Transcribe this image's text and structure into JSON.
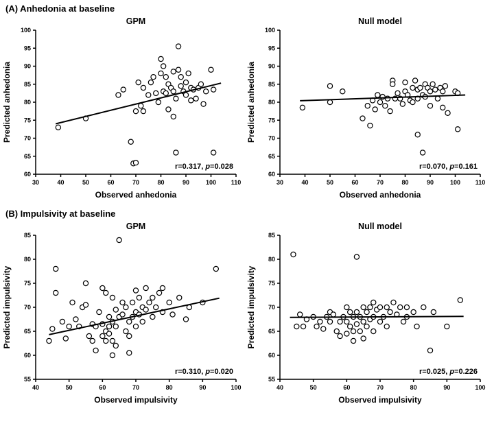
{
  "figure": {
    "sections": [
      {
        "label": "(A) Anhedonia at baseline"
      },
      {
        "label": "(B) Impulsivity at baseline"
      }
    ]
  },
  "chart_data": [
    {
      "type": "scatter",
      "panel": "A",
      "title": "GPM",
      "xlabel": "Observed anhedonia",
      "ylabel": "Predicted anhedonia",
      "xlim": [
        30,
        110
      ],
      "xticks": [
        30,
        40,
        50,
        60,
        70,
        80,
        90,
        100,
        110
      ],
      "ylim": [
        60,
        100
      ],
      "yticks": [
        60,
        65,
        70,
        75,
        80,
        85,
        90,
        95,
        100
      ],
      "points": [
        [
          39,
          73
        ],
        [
          50,
          75.5
        ],
        [
          63,
          82
        ],
        [
          65,
          83.5
        ],
        [
          68,
          69
        ],
        [
          69,
          63
        ],
        [
          70,
          63.2
        ],
        [
          70,
          77.5
        ],
        [
          71,
          85.5
        ],
        [
          72,
          79
        ],
        [
          73,
          77.5
        ],
        [
          73,
          84
        ],
        [
          75,
          82
        ],
        [
          76,
          85.5
        ],
        [
          77,
          87
        ],
        [
          78,
          82.5
        ],
        [
          79,
          80
        ],
        [
          80,
          92
        ],
        [
          80,
          88
        ],
        [
          81,
          90
        ],
        [
          81,
          83
        ],
        [
          82,
          87
        ],
        [
          82,
          82.5
        ],
        [
          83,
          78
        ],
        [
          83,
          85
        ],
        [
          84,
          84
        ],
        [
          85,
          88.5
        ],
        [
          85,
          83
        ],
        [
          85,
          76
        ],
        [
          86,
          66
        ],
        [
          86,
          81
        ],
        [
          87,
          95.5
        ],
        [
          87,
          89
        ],
        [
          88,
          87
        ],
        [
          88,
          84.5
        ],
        [
          89,
          83
        ],
        [
          90,
          85.5
        ],
        [
          90,
          82
        ],
        [
          91,
          88
        ],
        [
          92,
          84
        ],
        [
          92,
          80.5
        ],
        [
          93,
          83.5
        ],
        [
          94,
          81
        ],
        [
          95,
          84
        ],
        [
          96,
          85
        ],
        [
          97,
          79.5
        ],
        [
          98,
          83
        ],
        [
          100,
          89
        ],
        [
          101,
          83.5
        ],
        [
          101,
          66
        ]
      ],
      "fit_line": [
        [
          38,
          74
        ],
        [
          104,
          85.3
        ]
      ],
      "annotation": {
        "r": "r=0.317, ",
        "p_italic": "p",
        "p_value": "=0.028"
      }
    },
    {
      "type": "scatter",
      "panel": "A",
      "title": "Null model",
      "xlabel": "Observed anhedonia",
      "ylabel": "Predicted anhedonia",
      "xlim": [
        30,
        110
      ],
      "xticks": [
        30,
        40,
        50,
        60,
        70,
        80,
        90,
        100,
        110
      ],
      "ylim": [
        60,
        100
      ],
      "yticks": [
        60,
        65,
        70,
        75,
        80,
        85,
        90,
        95,
        100
      ],
      "points": [
        [
          39,
          78.5
        ],
        [
          50,
          84.5
        ],
        [
          50,
          80
        ],
        [
          55,
          83
        ],
        [
          63,
          75.5
        ],
        [
          65,
          79
        ],
        [
          66,
          73.5
        ],
        [
          67,
          80.5
        ],
        [
          68,
          78
        ],
        [
          69,
          82
        ],
        [
          70,
          80
        ],
        [
          71,
          81.5
        ],
        [
          72,
          79
        ],
        [
          73,
          81
        ],
        [
          74,
          77.5
        ],
        [
          75,
          86
        ],
        [
          75,
          85
        ],
        [
          76,
          81
        ],
        [
          77,
          82.5
        ],
        [
          78,
          81
        ],
        [
          79,
          79.5
        ],
        [
          80,
          85.5
        ],
        [
          80,
          83
        ],
        [
          81,
          82
        ],
        [
          82,
          80.5
        ],
        [
          83,
          84
        ],
        [
          83,
          80
        ],
        [
          84,
          86
        ],
        [
          85,
          83.5
        ],
        [
          85,
          81
        ],
        [
          85,
          71
        ],
        [
          86,
          84
        ],
        [
          87,
          82
        ],
        [
          87,
          66
        ],
        [
          88,
          85
        ],
        [
          88,
          81.5
        ],
        [
          89,
          84
        ],
        [
          90,
          83
        ],
        [
          90,
          79
        ],
        [
          91,
          85
        ],
        [
          92,
          83.5
        ],
        [
          93,
          81
        ],
        [
          94,
          84
        ],
        [
          95,
          83
        ],
        [
          95,
          78.5
        ],
        [
          96,
          84.5
        ],
        [
          97,
          77
        ],
        [
          100,
          83
        ],
        [
          101,
          82.5
        ],
        [
          101,
          72.5
        ]
      ],
      "fit_line": [
        [
          38,
          80.4
        ],
        [
          104,
          82
        ]
      ],
      "annotation": {
        "r": "r=0.070, ",
        "p_italic": "p",
        "p_value": "=0.161"
      }
    },
    {
      "type": "scatter",
      "panel": "B",
      "title": "GPM",
      "xlabel": "Observed impulsivity",
      "ylabel": "Predicted impulsivity",
      "xlim": [
        40,
        100
      ],
      "xticks": [
        40,
        50,
        60,
        70,
        80,
        90,
        100
      ],
      "ylim": [
        55,
        85
      ],
      "yticks": [
        55,
        60,
        65,
        70,
        75,
        80,
        85
      ],
      "points": [
        [
          44,
          63
        ],
        [
          45,
          65.5
        ],
        [
          46,
          78
        ],
        [
          46,
          73
        ],
        [
          48,
          67
        ],
        [
          49,
          63.5
        ],
        [
          50,
          66
        ],
        [
          51,
          71
        ],
        [
          52,
          67.5
        ],
        [
          53,
          66
        ],
        [
          54,
          70
        ],
        [
          55,
          75
        ],
        [
          55,
          70.5
        ],
        [
          56,
          64
        ],
        [
          57,
          63
        ],
        [
          57,
          66.5
        ],
        [
          58,
          66
        ],
        [
          58,
          61
        ],
        [
          59,
          69
        ],
        [
          60,
          74
        ],
        [
          60,
          66.5
        ],
        [
          60,
          64
        ],
        [
          61,
          73
        ],
        [
          61,
          65
        ],
        [
          61,
          63
        ],
        [
          62,
          68
        ],
        [
          62,
          66
        ],
        [
          62,
          64.5
        ],
        [
          63,
          72
        ],
        [
          63,
          67
        ],
        [
          63,
          63
        ],
        [
          63,
          60
        ],
        [
          64,
          69.5
        ],
        [
          64,
          66
        ],
        [
          64,
          62
        ],
        [
          65,
          84
        ],
        [
          65,
          68
        ],
        [
          66,
          71
        ],
        [
          66,
          68.5
        ],
        [
          67,
          70
        ],
        [
          67,
          65
        ],
        [
          68,
          67
        ],
        [
          68,
          64
        ],
        [
          68,
          60.5
        ],
        [
          69,
          71
        ],
        [
          69,
          68
        ],
        [
          70,
          73.5
        ],
        [
          70,
          69
        ],
        [
          70,
          66
        ],
        [
          71,
          72
        ],
        [
          71,
          68.5
        ],
        [
          72,
          70
        ],
        [
          72,
          67
        ],
        [
          73,
          74
        ],
        [
          73,
          69.5
        ],
        [
          74,
          71
        ],
        [
          75,
          72
        ],
        [
          75,
          68
        ],
        [
          76,
          70
        ],
        [
          77,
          73
        ],
        [
          78,
          74
        ],
        [
          78,
          69
        ],
        [
          80,
          71
        ],
        [
          81,
          68.5
        ],
        [
          83,
          72
        ],
        [
          85,
          67.5
        ],
        [
          86,
          70
        ],
        [
          90,
          71
        ],
        [
          94,
          78
        ]
      ],
      "fit_line": [
        [
          44,
          64.3
        ],
        [
          95,
          71.9
        ]
      ],
      "annotation": {
        "r": "r=0.310, ",
        "p_italic": "p",
        "p_value": "=0.020"
      }
    },
    {
      "type": "scatter",
      "panel": "B",
      "title": "Null model",
      "xlabel": "Observed impulsivity",
      "ylabel": "Predicted impulsivity",
      "xlim": [
        40,
        100
      ],
      "xticks": [
        40,
        50,
        60,
        70,
        80,
        90,
        100
      ],
      "ylim": [
        55,
        85
      ],
      "yticks": [
        55,
        60,
        65,
        70,
        75,
        80,
        85
      ],
      "points": [
        [
          44,
          81
        ],
        [
          45,
          66
        ],
        [
          46,
          68.5
        ],
        [
          47,
          66
        ],
        [
          48,
          67.5
        ],
        [
          50,
          68
        ],
        [
          51,
          66
        ],
        [
          52,
          67
        ],
        [
          53,
          65.5
        ],
        [
          54,
          68
        ],
        [
          55,
          69
        ],
        [
          55,
          67
        ],
        [
          56,
          68.5
        ],
        [
          57,
          65
        ],
        [
          58,
          67
        ],
        [
          58,
          64
        ],
        [
          59,
          68
        ],
        [
          60,
          70
        ],
        [
          60,
          67
        ],
        [
          60,
          64.5
        ],
        [
          61,
          69
        ],
        [
          61,
          66
        ],
        [
          62,
          68
        ],
        [
          62,
          65
        ],
        [
          62,
          63
        ],
        [
          63,
          80.5
        ],
        [
          63,
          69
        ],
        [
          63,
          66.5
        ],
        [
          64,
          68
        ],
        [
          64,
          65
        ],
        [
          65,
          70
        ],
        [
          65,
          67
        ],
        [
          65,
          63.5
        ],
        [
          66,
          69
        ],
        [
          66,
          66
        ],
        [
          67,
          70
        ],
        [
          67,
          67.5
        ],
        [
          68,
          71
        ],
        [
          68,
          68
        ],
        [
          68,
          65
        ],
        [
          69,
          69.5
        ],
        [
          70,
          70
        ],
        [
          70,
          67
        ],
        [
          71,
          68
        ],
        [
          72,
          70
        ],
        [
          72,
          66
        ],
        [
          73,
          69
        ],
        [
          74,
          71
        ],
        [
          75,
          68.5
        ],
        [
          76,
          70
        ],
        [
          77,
          67
        ],
        [
          78,
          70
        ],
        [
          78,
          68
        ],
        [
          80,
          69
        ],
        [
          81,
          66
        ],
        [
          83,
          70
        ],
        [
          85,
          61
        ],
        [
          86,
          69
        ],
        [
          90,
          66
        ],
        [
          94,
          71.5
        ]
      ],
      "fit_line": [
        [
          43,
          67.9
        ],
        [
          95,
          68.1
        ]
      ],
      "annotation": {
        "r": "r=0.025, ",
        "p_italic": "p",
        "p_value": "=0.226"
      }
    }
  ]
}
